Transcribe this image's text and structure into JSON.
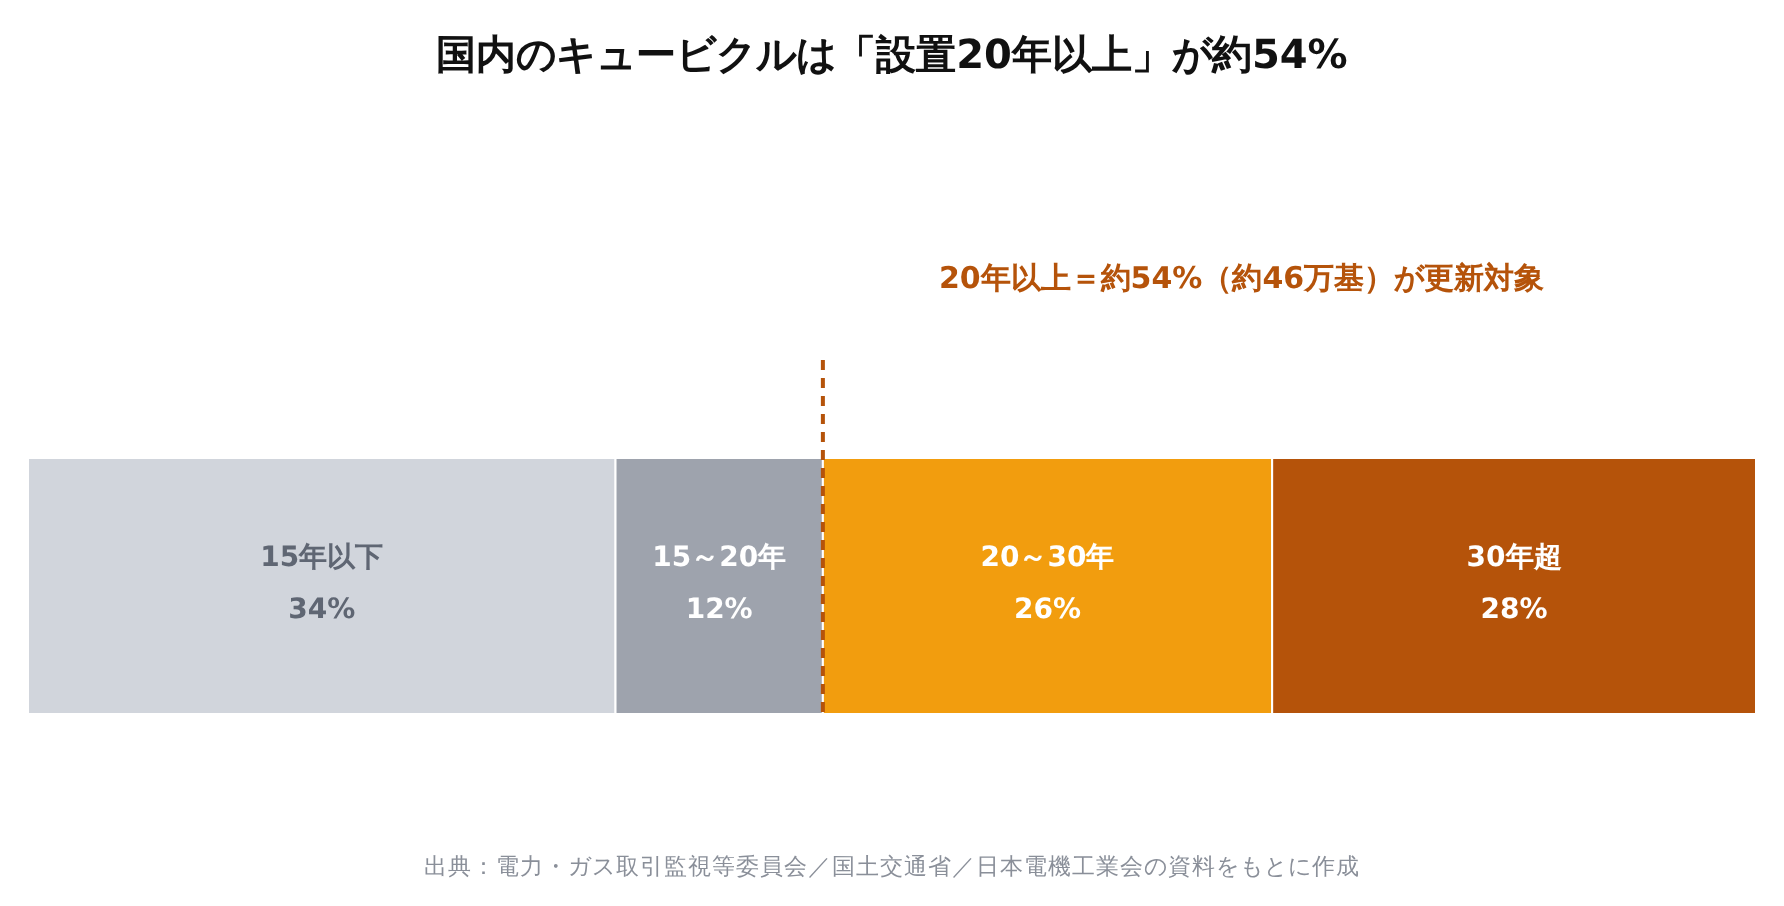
{
  "chart_data": {
    "type": "bar",
    "title": "国内のキュービクルは「設置20年以上」が約54%",
    "orientation": "horizontal",
    "stacked": true,
    "legend": false,
    "categories": [
      null
    ],
    "series": [
      {
        "name": "15年以下",
        "color": "#d1d5dc",
        "values": [
          34
        ],
        "value_labels": [
          "34%"
        ]
      },
      {
        "name": "15～20年",
        "color": "#9ea3ad",
        "values": [
          12
        ],
        "value_labels": [
          "12%"
        ]
      },
      {
        "name": "20～30年",
        "color": "#f29d0e",
        "values": [
          26
        ],
        "value_labels": [
          "26%"
        ]
      },
      {
        "name": "30年超",
        "color": "#b5530a",
        "values": [
          28
        ],
        "value_labels": [
          "28%"
        ]
      }
    ],
    "ref_lines": [
      {
        "axis": "x",
        "value": 46,
        "label": "20年以上＝約54%（約46万基）が更新対象",
        "color": "#b5530a",
        "line_style": "dashed"
      }
    ],
    "annotations": [
      "出典：電力・ガス取引監視等委員会／国土交通省／日本電機工業会の資料をもとに作成"
    ]
  }
}
